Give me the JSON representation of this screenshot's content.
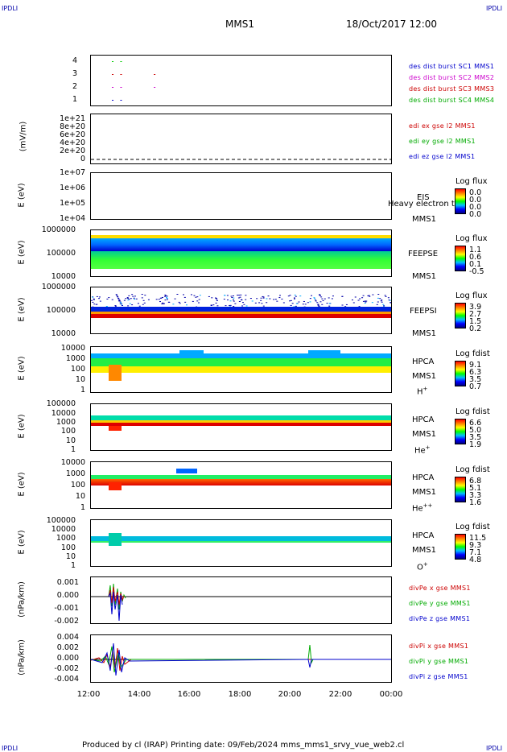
{
  "header": {
    "corner_label": "IPDLI",
    "mission": "MMS1",
    "datetime": "18/Oct/2017 12:00"
  },
  "footer": {
    "text": "Produced by cl (IRAP)    Printing date: 09/Feb/2024    mms_mms1_srvy_vue_web2.cl"
  },
  "x_axis": {
    "ticks": [
      "12:00",
      "14:00",
      "16:00",
      "18:00",
      "20:00",
      "22:00",
      "00:00"
    ]
  },
  "panels": {
    "p1": {
      "ticks": [
        "4",
        "3",
        "2",
        "1"
      ],
      "legend": [
        {
          "text": "des dist burst SC1 MMS1",
          "color": "#0000cc"
        },
        {
          "text": "des dist burst SC2 MMS2",
          "color": "#cc00cc"
        },
        {
          "text": "des dist burst SC3 MMS3",
          "color": "#cc0000"
        },
        {
          "text": "des dist burst SC4 MMS4",
          "color": "#00cc00"
        }
      ]
    },
    "p2": {
      "ylabel": "(mV/m)",
      "ticks": [
        "1e+21",
        "8e+20",
        "6e+20",
        "4e+20",
        "2e+20",
        "0"
      ],
      "legend": [
        {
          "text": "edi ex gse l2 MMS1",
          "color": "#cc0000"
        },
        {
          "text": "edi ey gse l2 MMS1",
          "color": "#00aa00"
        },
        {
          "text": "edi ez gse l2 MMS1",
          "color": "#0000cc"
        }
      ]
    },
    "p3": {
      "ylabel": "E (eV)",
      "ticks": [
        "1e+07",
        "1e+06",
        "1e+05",
        "1e+04"
      ],
      "label1": "EIS",
      "label2": "MMS1",
      "overlay": "Heavy electron to",
      "cb_title": "Log flux",
      "cb_ticks": [
        "0.0",
        "0.0",
        "0.0",
        "0.0"
      ]
    },
    "p4": {
      "ylabel": "E (eV)",
      "ticks": [
        "1000000",
        "100000",
        "10000"
      ],
      "label1": "FEEPSE",
      "label2": "MMS1",
      "cb_title": "Log flux",
      "cb_ticks": [
        "1.1",
        "0.6",
        "0.1",
        "-0.5"
      ]
    },
    "p5": {
      "ylabel": "E (eV)",
      "ticks": [
        "1000000",
        "100000",
        "10000"
      ],
      "label1": "FEEPSI",
      "label2": "MMS1",
      "cb_title": "Log flux",
      "cb_ticks": [
        "3.9",
        "2.7",
        "1.5",
        "0.2"
      ]
    },
    "p6": {
      "ylabel": "E (eV)",
      "ticks": [
        "10000",
        "1000",
        "100",
        "10",
        "1"
      ],
      "label1": "HPCA",
      "label2": "MMS1",
      "species": "H",
      "species_sup": "+",
      "cb_title": "Log fdist",
      "cb_ticks": [
        "9.1",
        "6.3",
        "3.5",
        "0.7"
      ]
    },
    "p7": {
      "ylabel": "E (eV)",
      "ticks": [
        "100000",
        "10000",
        "1000",
        "100",
        "10",
        "1"
      ],
      "label1": "HPCA",
      "label2": "MMS1",
      "species": "He",
      "species_sup": "+",
      "cb_title": "Log fdist",
      "cb_ticks": [
        "6.6",
        "5.0",
        "3.5",
        "1.9"
      ]
    },
    "p8": {
      "ylabel": "E (eV)",
      "ticks": [
        "10000",
        "1000",
        "100",
        "10",
        "1"
      ],
      "label1": "HPCA",
      "label2": "MMS1",
      "species": "He",
      "species_sup": "++",
      "cb_title": "Log fdist",
      "cb_ticks": [
        "6.8",
        "5.1",
        "3.3",
        "1.6"
      ]
    },
    "p9": {
      "ylabel": "E (eV)",
      "ticks": [
        "100000",
        "10000",
        "1000",
        "100",
        "10",
        "1"
      ],
      "label1": "HPCA",
      "label2": "MMS1",
      "species": "O",
      "species_sup": "+",
      "cb_title": "Log fdist",
      "cb_ticks": [
        "11.5",
        "9.3",
        "7.1",
        "4.8"
      ]
    },
    "p10": {
      "ylabel": "(nPa/km)",
      "ticks": [
        "0.001",
        "0.000",
        "-0.001",
        "-0.002"
      ],
      "legend": [
        {
          "text": "divPe x gse MMS1",
          "color": "#cc0000"
        },
        {
          "text": "divPe y gse MMS1",
          "color": "#00aa00"
        },
        {
          "text": "divPe z gse MMS1",
          "color": "#0000cc"
        }
      ]
    },
    "p11": {
      "ylabel": "(nPa/km)",
      "ticks": [
        "0.004",
        "0.002",
        "0.000",
        "-0.002",
        "-0.004"
      ],
      "legend": [
        {
          "text": "divPi x gse MMS1",
          "color": "#cc0000"
        },
        {
          "text": "divPi y gse MMS1",
          "color": "#00aa00"
        },
        {
          "text": "divPi z gse MMS1",
          "color": "#0000cc"
        }
      ]
    }
  },
  "chart_data": {
    "type": "heatmap",
    "title": "MMS1 18/Oct/2017 12:00",
    "x_range": [
      "12:00",
      "00:00"
    ],
    "colormap": [
      "#ff0000",
      "#ff8000",
      "#ffff00",
      "#00ff00",
      "#00c0ff",
      "#0000ff",
      "#000080"
    ],
    "panels": [
      {
        "name": "des dist burst",
        "type": "scatter",
        "ylim": [
          1,
          4
        ],
        "series": [
          {
            "name": "des dist burst SC1 MMS1",
            "y": 1,
            "x": [
              "12:50",
              "13:10"
            ]
          },
          {
            "name": "des dist burst SC2 MMS2",
            "y": 2,
            "x": [
              "12:50",
              "13:10",
              "14:30"
            ]
          },
          {
            "name": "des dist burst SC3 MMS3",
            "y": 3,
            "x": [
              "12:50",
              "13:10",
              "14:30"
            ]
          },
          {
            "name": "des dist burst SC4 MMS4",
            "y": 4,
            "x": [
              "12:50",
              "13:10"
            ]
          }
        ]
      },
      {
        "name": "edi e gse l2",
        "type": "line",
        "ylabel": "(mV/m)",
        "ylim": [
          0,
          1e+21
        ]
      },
      {
        "name": "EIS",
        "type": "heatmap",
        "ylabel": "E (eV)",
        "ylim": [
          10000.0,
          10000000.0
        ],
        "log": true,
        "colorbar": [
          0.0,
          0.0
        ]
      },
      {
        "name": "FEEPSE",
        "type": "heatmap",
        "ylabel": "E (eV)",
        "ylim": [
          10000,
          1000000
        ],
        "log": true,
        "colorbar": [
          -0.5,
          1.1
        ]
      },
      {
        "name": "FEEPSI",
        "type": "heatmap",
        "ylabel": "E (eV)",
        "ylim": [
          10000,
          1000000
        ],
        "log": true,
        "colorbar": [
          0.2,
          3.9
        ]
      },
      {
        "name": "HPCA H+",
        "type": "heatmap",
        "ylabel": "E (eV)",
        "ylim": [
          1,
          10000
        ],
        "log": true,
        "colorbar": [
          0.7,
          9.1
        ]
      },
      {
        "name": "HPCA He+",
        "type": "heatmap",
        "ylabel": "E (eV)",
        "ylim": [
          1,
          100000
        ],
        "log": true,
        "colorbar": [
          1.9,
          6.6
        ]
      },
      {
        "name": "HPCA He++",
        "type": "heatmap",
        "ylabel": "E (eV)",
        "ylim": [
          1,
          10000
        ],
        "log": true,
        "colorbar": [
          1.6,
          6.8
        ]
      },
      {
        "name": "HPCA O+",
        "type": "heatmap",
        "ylabel": "E (eV)",
        "ylim": [
          1,
          100000
        ],
        "log": true,
        "colorbar": [
          4.8,
          11.5
        ]
      },
      {
        "name": "divPe gse",
        "type": "line",
        "ylabel": "(nPa/km)",
        "ylim": [
          -0.002,
          0.0015
        ]
      },
      {
        "name": "divPi gse",
        "type": "line",
        "ylabel": "(nPa/km)",
        "ylim": [
          -0.0045,
          0.0045
        ]
      }
    ]
  }
}
